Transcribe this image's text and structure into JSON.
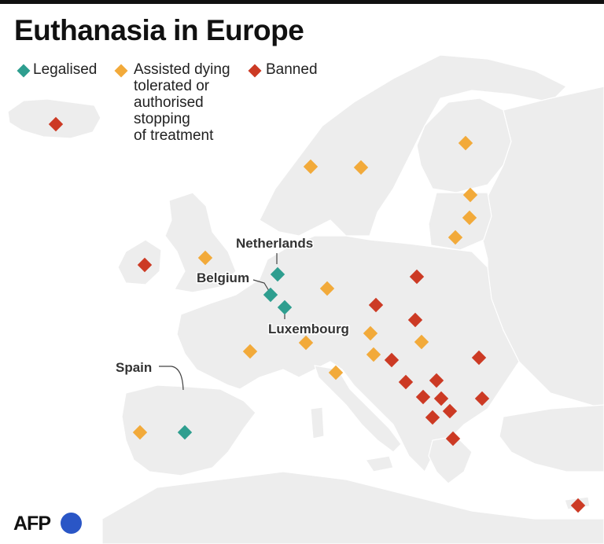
{
  "title": "Euthanasia in Europe",
  "legend": [
    {
      "label": "Legalised",
      "color": "#2e9e8f"
    },
    {
      "label": "Assisted dying\ntolerated or\nauthorised\nstopping\nof treatment",
      "color": "#f2aa3a"
    },
    {
      "label": "Banned",
      "color": "#cc3a24"
    }
  ],
  "labels": {
    "netherlands": "Netherlands",
    "belgium": "Belgium",
    "luxembourg": "Luxembourg",
    "spain": "Spain"
  },
  "markers": {
    "legalised": [
      "Netherlands",
      "Belgium",
      "Luxembourg",
      "Spain"
    ],
    "tolerated": [
      "Portugal",
      "France",
      "United Kingdom",
      "Germany",
      "Switzerland",
      "Italy",
      "Austria",
      "Slovenia",
      "Hungary",
      "Norway",
      "Sweden",
      "Finland",
      "Estonia",
      "Latvia",
      "Lithuania"
    ],
    "banned": [
      "Iceland",
      "Ireland",
      "Poland",
      "Czechia",
      "Slovakia",
      "Croatia",
      "Bosnia and Herzegovina",
      "Serbia",
      "Montenegro",
      "Kosovo",
      "Albania",
      "North Macedonia",
      "Romania",
      "Bulgaria",
      "Greece",
      "Cyprus"
    ]
  },
  "logo": "AFP",
  "colors": {
    "legalised": "#2e9e8f",
    "tolerated": "#f2aa3a",
    "banned": "#cc3a24",
    "land": "#ededed"
  }
}
